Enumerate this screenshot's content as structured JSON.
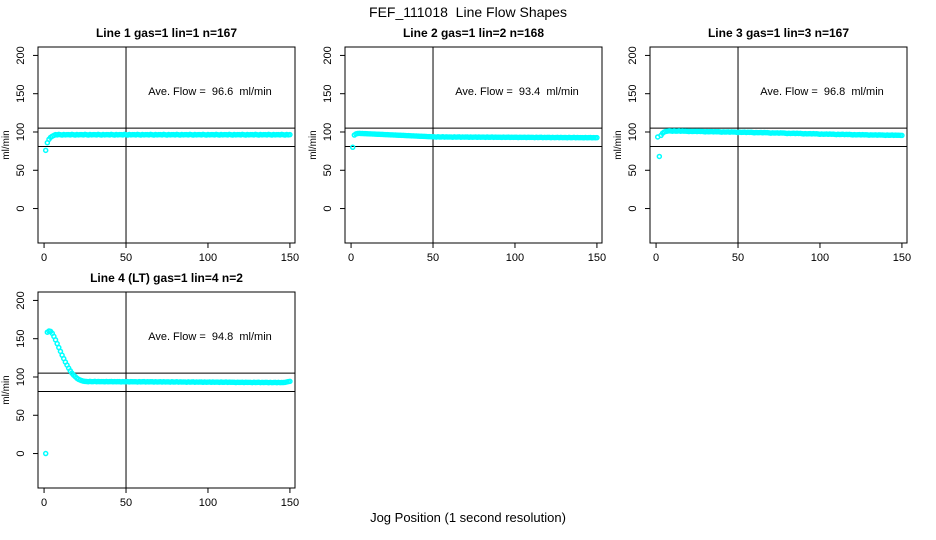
{
  "page_title": "FEF_111018  Line Flow Shapes",
  "x_axis_label": "Jog Position (1 second resolution)",
  "point_color": "#00FFFF",
  "axis_color": "#000000",
  "chart_data": [
    {
      "type": "scatter",
      "title": "Line 1 gas=1 lin=1 n=167",
      "annotation": "Ave. Flow =  96.6  ml/min",
      "ylabel": "ml/min",
      "xlim": [
        -3.7,
        153.1
      ],
      "ylim": [
        -45,
        211
      ],
      "xticks": [
        0,
        50,
        100,
        150
      ],
      "yticks": [
        0,
        50,
        100,
        150,
        200
      ],
      "vline_x": 50,
      "hlines": [
        105,
        81
      ],
      "x_start": 1,
      "x_step": 1,
      "y": [
        76,
        86,
        90.5,
        93,
        94.5,
        95.5,
        96.6,
        96.2,
        96.8,
        96.4,
        96,
        96.7,
        96.3,
        96.5,
        96.6,
        96.2,
        96.8,
        96.4,
        96,
        96.7,
        96.3,
        96.5,
        96.6,
        96.2,
        96.8,
        96.4,
        96,
        96.7,
        96.3,
        96.5,
        96.6,
        96.2,
        96.8,
        96.4,
        96,
        96.7,
        96.3,
        96.5,
        96.6,
        96.2,
        96.8,
        96.4,
        96,
        96.7,
        96.3,
        96.5,
        96.6,
        96.2,
        96.8,
        96.4,
        96,
        96.7,
        96.3,
        96.5,
        96.6,
        96.2,
        96.8,
        96.4,
        96,
        96.7,
        96.3,
        96.5,
        96.6,
        96.2,
        96.8,
        96.4,
        96,
        96.7,
        96.3,
        96.5,
        96.6,
        96.2,
        96.8,
        96.4,
        96,
        96.7,
        96.3,
        96.5,
        96.6,
        96.2,
        96.8,
        96.4,
        96,
        96.7,
        96.3,
        96.5,
        96.6,
        96.2,
        96.8,
        96.4,
        96,
        96.7,
        96.3,
        96.5,
        96.6,
        96.2,
        96.8,
        96.4,
        96,
        96.7,
        96.3,
        96.5,
        96.6,
        96.2,
        96.8,
        96.4,
        96,
        96.7,
        96.3,
        96.5,
        96.6,
        96.2,
        96.8,
        96.4,
        96,
        96.7,
        96.3,
        96.5,
        96.6,
        96.2,
        96.8,
        96.4,
        96,
        96.7,
        96.3,
        96.5,
        96.6,
        96.2,
        96.8,
        96.4,
        96,
        96.7,
        96.3,
        96.5,
        96.6,
        96.2,
        96.8,
        96.4,
        96,
        96.7,
        96.3,
        96.5,
        96.6,
        96.2,
        96.8,
        96.4,
        96,
        96.7,
        96.3,
        96.5
      ]
    },
    {
      "type": "scatter",
      "title": "Line 2 gas=1 lin=2 n=168",
      "annotation": "Ave. Flow =  93.4  ml/min",
      "ylabel": "ml/min",
      "xlim": [
        -3.7,
        153.1
      ],
      "ylim": [
        -45,
        211
      ],
      "xticks": [
        0,
        50,
        100,
        150
      ],
      "yticks": [
        0,
        50,
        100,
        150,
        200
      ],
      "vline_x": 50,
      "hlines": [
        105,
        81
      ],
      "x_start": 1,
      "x_step": 1,
      "y": [
        80,
        96,
        97.5,
        98,
        98.2,
        98.1,
        98,
        97.9,
        97.8,
        97.7,
        97.6,
        97.5,
        97.4,
        97.3,
        97.2,
        97.1,
        97,
        96.9,
        96.8,
        96.7,
        96.6,
        96.5,
        96.4,
        96.3,
        96.2,
        96.1,
        96,
        95.9,
        95.8,
        95.7,
        95.6,
        95.5,
        95.4,
        95.3,
        95.2,
        95.1,
        95,
        94.9,
        94.8,
        94.7,
        94.6,
        94.5,
        94.4,
        94.3,
        94.2,
        94.1,
        94,
        93.9,
        93.8,
        93.7,
        93.6,
        93.3,
        93.7,
        93.4,
        93.5,
        93.7,
        93.3,
        93.6,
        93.4,
        93.5,
        93.5,
        93.2,
        93.6,
        93.3,
        93.4,
        93.6,
        93.2,
        93.5,
        93.3,
        93.4,
        93.4,
        93.1,
        93.5,
        93.2,
        93.3,
        93.5,
        93.1,
        93.4,
        93.2,
        93.3,
        93.3,
        93,
        93.4,
        93.1,
        93.2,
        93.4,
        93,
        93.3,
        93.1,
        93.2,
        93.2,
        92.9,
        93.3,
        93,
        93.1,
        93.3,
        92.9,
        93.2,
        93,
        93.1,
        93.1,
        92.8,
        93.2,
        92.9,
        93,
        93.2,
        92.8,
        93.1,
        92.9,
        93,
        93,
        92.7,
        93.1,
        92.8,
        92.9,
        93.1,
        92.7,
        93,
        92.8,
        92.9,
        92.9,
        92.6,
        93,
        92.7,
        92.8,
        93,
        92.6,
        92.9,
        92.7,
        92.8,
        92.8,
        92.5,
        92.9,
        92.6,
        92.7,
        92.9,
        92.5,
        92.8,
        92.6,
        92.7,
        92.7,
        92.4,
        92.8,
        92.5,
        92.6,
        92.8,
        92.4,
        92.7,
        92.5,
        92.6
      ]
    },
    {
      "type": "scatter",
      "title": "Line 3 gas=1 lin=3 n=167",
      "annotation": "Ave. Flow =  96.8  ml/min",
      "ylabel": "ml/min",
      "xlim": [
        -3.7,
        153.1
      ],
      "ylim": [
        -45,
        211
      ],
      "xticks": [
        0,
        50,
        100,
        150
      ],
      "yticks": [
        0,
        50,
        100,
        150,
        200
      ],
      "vline_x": 50,
      "hlines": [
        105,
        81
      ],
      "x_start": 1,
      "x_step": 1,
      "y": [
        93.5,
        68,
        95.5,
        98.5,
        100,
        100.8,
        101.2,
        101.4,
        101.3,
        101,
        101.4,
        101.1,
        101.2,
        101.4,
        101,
        101.3,
        101.1,
        101.2,
        100.9,
        100.6,
        101,
        100.7,
        100.8,
        101,
        100.6,
        100.9,
        100.7,
        100.8,
        100.5,
        100.2,
        100.6,
        100.3,
        100.4,
        100.6,
        100.2,
        100.5,
        100.3,
        100.4,
        100.1,
        99.8,
        100.2,
        99.9,
        100,
        100.2,
        99.8,
        100.1,
        99.9,
        100,
        99.7,
        99.4,
        99.8,
        99.5,
        99.6,
        99.8,
        99.4,
        99.7,
        99.5,
        99.6,
        99.3,
        99,
        99.4,
        99.1,
        99.2,
        99.4,
        99,
        99.3,
        99.1,
        99.2,
        98.8,
        98.5,
        98.9,
        98.6,
        98.7,
        98.9,
        98.5,
        98.8,
        98.6,
        98.7,
        98.3,
        98,
        98.4,
        98.1,
        98.2,
        98.4,
        98,
        98.3,
        98.1,
        98.2,
        97.8,
        97.5,
        97.9,
        97.6,
        97.7,
        97.9,
        97.5,
        97.8,
        97.6,
        97.7,
        97.3,
        97,
        97.4,
        97.1,
        97.2,
        97.4,
        97,
        97.3,
        97.1,
        97.2,
        96.9,
        96.6,
        97,
        96.7,
        96.8,
        97,
        96.6,
        96.9,
        96.7,
        96.8,
        96.5,
        96.2,
        96.6,
        96.3,
        96.4,
        96.6,
        96.2,
        96.5,
        96.3,
        96.4,
        96.2,
        95.9,
        96.3,
        96,
        96.1,
        96.3,
        95.9,
        96.2,
        96,
        96.1,
        95.9,
        95.6,
        96,
        95.7,
        95.8,
        96,
        95.6,
        95.9,
        95.7,
        95.8,
        95.6,
        95.5
      ]
    },
    {
      "type": "scatter",
      "title": "Line 4 (LT) gas=1 lin=4 n=2",
      "annotation": "Ave. Flow =  94.8  ml/min",
      "ylabel": "ml/min",
      "xlim": [
        -3.7,
        153.1
      ],
      "ylim": [
        -45,
        211
      ],
      "xticks": [
        0,
        50,
        100,
        150
      ],
      "yticks": [
        0,
        50,
        100,
        150,
        200
      ],
      "vline_x": 50,
      "hlines": [
        105,
        81
      ],
      "x_start": 1,
      "x_step": 1,
      "y": [
        0,
        158.5,
        160,
        159.5,
        157,
        153,
        148.5,
        143.5,
        138.5,
        133.5,
        128.5,
        124,
        119.5,
        115.5,
        111.5,
        108,
        105,
        102.5,
        100.5,
        98.5,
        97,
        96,
        95.2,
        94.6,
        94.2,
        94.1,
        93.8,
        94.2,
        93.9,
        94,
        94.2,
        93.8,
        94.1,
        93.9,
        94,
        94,
        93.7,
        94.1,
        93.8,
        93.9,
        94.1,
        93.7,
        94,
        93.8,
        93.9,
        93.9,
        93.6,
        94,
        93.7,
        93.8,
        94,
        93.6,
        93.9,
        93.7,
        93.8,
        93.8,
        93.5,
        93.9,
        93.6,
        93.7,
        93.9,
        93.5,
        93.8,
        93.6,
        93.7,
        93.7,
        93.4,
        93.8,
        93.5,
        93.6,
        93.8,
        93.4,
        93.7,
        93.5,
        93.6,
        93.6,
        93.3,
        93.7,
        93.4,
        93.5,
        93.7,
        93.3,
        93.6,
        93.4,
        93.5,
        93.5,
        93.2,
        93.6,
        93.3,
        93.4,
        93.6,
        93.2,
        93.5,
        93.3,
        93.4,
        93.4,
        93.1,
        93.5,
        93.2,
        93.3,
        93.5,
        93.1,
        93.4,
        93.2,
        93.3,
        93.3,
        93,
        93.4,
        93.1,
        93.2,
        93.4,
        93,
        93.3,
        93.1,
        93.2,
        93.1,
        92.8,
        93.2,
        92.9,
        93,
        93.2,
        92.8,
        93.1,
        92.9,
        93,
        93,
        92.7,
        93.1,
        92.8,
        92.9,
        93.1,
        92.7,
        93,
        92.8,
        92.9,
        92.9,
        92.6,
        93,
        92.7,
        92.8,
        93,
        92.6,
        92.9,
        92.7,
        92.8,
        92.8,
        93,
        93.5,
        94,
        94.3
      ]
    }
  ]
}
